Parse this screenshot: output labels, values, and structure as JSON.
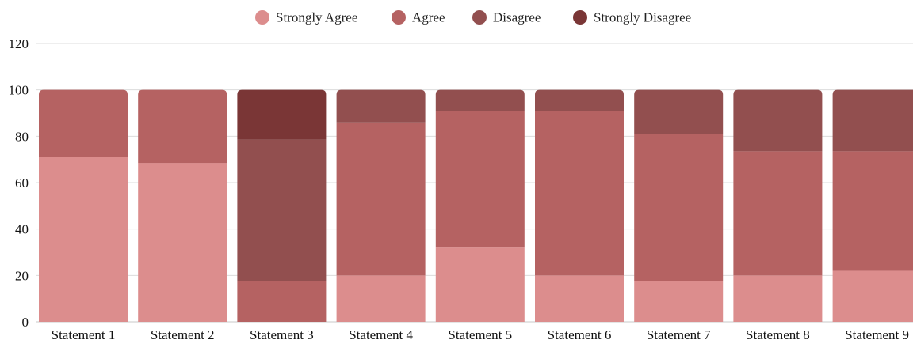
{
  "chart_data": {
    "type": "bar",
    "stacked": true,
    "categories": [
      "Statement 1",
      "Statement 2",
      "Statement 3",
      "Statement 4",
      "Statement 5",
      "Statement 6",
      "Statement 7",
      "Statement 8",
      "Statement 9"
    ],
    "series": [
      {
        "name": "Strongly Agree",
        "color": "#dc8d8d",
        "values": [
          71,
          68.5,
          0,
          20,
          32,
          20,
          17.5,
          20,
          22
        ]
      },
      {
        "name": "Agree",
        "color": "#b56262",
        "values": [
          29,
          31.5,
          17.5,
          66,
          59,
          71,
          63.5,
          53.5,
          51.5
        ]
      },
      {
        "name": "Disagree",
        "color": "#924f4f",
        "values": [
          0,
          0,
          61,
          14,
          9,
          9,
          19,
          26.5,
          26.5
        ]
      },
      {
        "name": "Strongly Disagree",
        "color": "#7a3636",
        "values": [
          0,
          0,
          21.5,
          0,
          0,
          0,
          0,
          0,
          0
        ]
      }
    ],
    "ylim": [
      0,
      120
    ],
    "yticks": [
      "0",
      "20",
      "40",
      "60",
      "80",
      "100",
      "120"
    ],
    "title": "",
    "xlabel": "",
    "ylabel": "",
    "grid": true,
    "legend_position": "top-center"
  }
}
